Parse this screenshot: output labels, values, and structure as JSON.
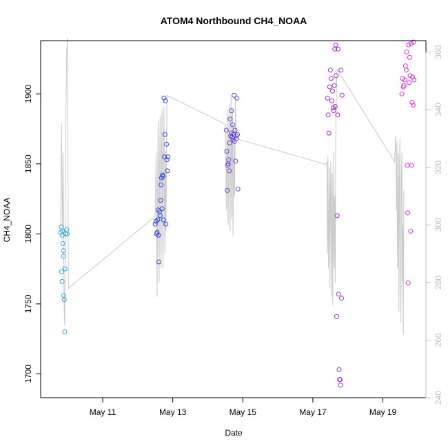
{
  "chart_data": {
    "type": "scatter",
    "title": "ATOM4 Northbound CH4_NOAA",
    "xlabel": "Date",
    "ylabel": "CH4_NOAA",
    "x_axis": {
      "unit": "day",
      "range": [
        "2018-05-09T05:30",
        "2018-05-20T05:30"
      ],
      "ticks": [
        {
          "value": "2018-05-11",
          "label": "May 11"
        },
        {
          "value": "2018-05-13",
          "label": "May 13"
        },
        {
          "value": "2018-05-15",
          "label": "May 15"
        },
        {
          "value": "2018-05-17",
          "label": "May 17"
        },
        {
          "value": "2018-05-19",
          "label": "May 19"
        }
      ]
    },
    "y_left": {
      "range": [
        1683,
        1938
      ],
      "ticks": [
        1700,
        1750,
        1800,
        1850,
        1900
      ]
    },
    "y_right": {
      "color": "#bebebe",
      "range": [
        240,
        364
      ],
      "ticks": [
        240,
        260,
        280,
        300,
        320,
        340,
        360
      ]
    },
    "marker": "open-circle",
    "groups": [
      {
        "color": "#29a8e0",
        "points": [
          [
            "2018-05-09T19:12",
            1801
          ],
          [
            "2018-05-09T19:40",
            1805
          ],
          [
            "2018-05-09T19:50",
            1773
          ],
          [
            "2018-05-09T20:10",
            1766
          ],
          [
            "2018-05-09T20:20",
            1799
          ],
          [
            "2018-05-09T20:30",
            1802
          ],
          [
            "2018-05-09T20:40",
            1793
          ],
          [
            "2018-05-09T21:00",
            1788
          ],
          [
            "2018-05-09T21:10",
            1784
          ],
          [
            "2018-05-09T21:20",
            1756
          ],
          [
            "2018-05-09T21:40",
            1753
          ],
          [
            "2018-05-09T22:00",
            1730
          ],
          [
            "2018-05-09T22:10",
            1775
          ],
          [
            "2018-05-09T22:30",
            1800
          ],
          [
            "2018-05-09T23:20",
            1803
          ],
          [
            "2018-05-09T23:40",
            1800
          ]
        ]
      },
      {
        "color": "#2b46d8",
        "points": [
          [
            "2018-05-12T12:00",
            1807
          ],
          [
            "2018-05-12T12:30",
            1809
          ],
          [
            "2018-05-12T13:00",
            1800
          ],
          [
            "2018-05-12T13:20",
            1801
          ],
          [
            "2018-05-12T13:40",
            1810
          ],
          [
            "2018-05-12T14:00",
            1817
          ],
          [
            "2018-05-12T14:10",
            1799
          ],
          [
            "2018-05-12T14:30",
            1780
          ],
          [
            "2018-05-12T15:00",
            1816
          ],
          [
            "2018-05-12T15:20",
            1813
          ],
          [
            "2018-05-12T15:40",
            1824
          ],
          [
            "2018-05-12T16:00",
            1835
          ],
          [
            "2018-05-12T16:20",
            1840
          ],
          [
            "2018-05-12T16:40",
            1818
          ],
          [
            "2018-05-12T17:00",
            1842
          ],
          [
            "2018-05-12T17:20",
            1841
          ],
          [
            "2018-05-12T17:40",
            1810
          ],
          [
            "2018-05-12T18:00",
            1897
          ],
          [
            "2018-05-12T18:20",
            1855
          ],
          [
            "2018-05-12T18:40",
            1871
          ],
          [
            "2018-05-12T19:00",
            1895
          ],
          [
            "2018-05-12T19:20",
            1807
          ],
          [
            "2018-05-12T19:40",
            1864
          ],
          [
            "2018-05-12T20:00",
            1853
          ],
          [
            "2018-05-12T20:20",
            1845
          ],
          [
            "2018-05-12T20:40",
            1855
          ]
        ]
      },
      {
        "color": "#6a3fd8",
        "points": [
          [
            "2018-05-14T12:40",
            1874
          ],
          [
            "2018-05-14T13:00",
            1859
          ],
          [
            "2018-05-14T13:20",
            1831
          ],
          [
            "2018-05-14T13:40",
            1849
          ],
          [
            "2018-05-14T14:00",
            1850
          ],
          [
            "2018-05-14T14:20",
            1853
          ],
          [
            "2018-05-14T14:40",
            1845
          ],
          [
            "2018-05-14T15:00",
            1865
          ],
          [
            "2018-05-14T15:20",
            1882
          ],
          [
            "2018-05-14T15:40",
            1870
          ],
          [
            "2018-05-14T16:00",
            1872
          ],
          [
            "2018-05-14T16:20",
            1888
          ],
          [
            "2018-05-14T16:40",
            1869
          ],
          [
            "2018-05-14T17:00",
            1878
          ],
          [
            "2018-05-14T17:20",
            1867
          ],
          [
            "2018-05-14T17:40",
            1871
          ],
          [
            "2018-05-14T18:00",
            1899
          ],
          [
            "2018-05-14T18:20",
            1866
          ],
          [
            "2018-05-14T18:40",
            1874
          ],
          [
            "2018-05-14T19:00",
            1852
          ],
          [
            "2018-05-14T19:20",
            1870
          ],
          [
            "2018-05-14T19:40",
            1868
          ],
          [
            "2018-05-14T20:00",
            1897
          ],
          [
            "2018-05-14T20:20",
            1871
          ],
          [
            "2018-05-14T20:40",
            1832
          ]
        ]
      },
      {
        "color": "#a12bd0",
        "points": [
          [
            "2018-05-17T10:00",
            1897
          ],
          [
            "2018-05-17T10:30",
            1885
          ],
          [
            "2018-05-17T11:00",
            1872
          ],
          [
            "2018-05-17T11:30",
            1905
          ],
          [
            "2018-05-17T12:00",
            1917
          ],
          [
            "2018-05-17T12:30",
            1911
          ],
          [
            "2018-05-17T13:00",
            1895
          ],
          [
            "2018-05-17T13:30",
            1902
          ],
          [
            "2018-05-17T14:00",
            1890
          ],
          [
            "2018-05-17T14:20",
            1888
          ],
          [
            "2018-05-17T14:40",
            1906
          ],
          [
            "2018-05-17T15:00",
            1932
          ],
          [
            "2018-05-17T15:20",
            1891
          ],
          [
            "2018-05-17T15:40",
            1935
          ],
          [
            "2018-05-17T16:00",
            1913
          ],
          [
            "2018-05-17T16:20",
            1741
          ],
          [
            "2018-05-17T16:40",
            1813
          ],
          [
            "2018-05-17T17:00",
            1885
          ],
          [
            "2018-05-17T17:20",
            1932
          ],
          [
            "2018-05-17T17:40",
            1757
          ],
          [
            "2018-05-17T18:00",
            1703
          ],
          [
            "2018-05-17T18:20",
            1696
          ],
          [
            "2018-05-17T18:40",
            1696
          ],
          [
            "2018-05-17T19:00",
            1692
          ],
          [
            "2018-05-17T19:20",
            1917
          ],
          [
            "2018-05-17T19:40",
            1754
          ],
          [
            "2018-05-17T20:00",
            1899
          ]
        ]
      },
      {
        "color": "#e02ed8",
        "points": [
          [
            "2018-05-19T13:00",
            1900
          ],
          [
            "2018-05-19T13:30",
            1911
          ],
          [
            "2018-05-19T14:00",
            1905
          ],
          [
            "2018-05-19T14:30",
            1906
          ],
          [
            "2018-05-19T15:00",
            1910
          ],
          [
            "2018-05-19T15:30",
            1920
          ],
          [
            "2018-05-19T16:00",
            1917
          ],
          [
            "2018-05-19T16:20",
            1930
          ],
          [
            "2018-05-19T16:40",
            1849
          ],
          [
            "2018-05-19T17:00",
            1815
          ],
          [
            "2018-05-19T17:20",
            1765
          ],
          [
            "2018-05-19T17:40",
            1935
          ],
          [
            "2018-05-19T18:00",
            1908
          ],
          [
            "2018-05-19T18:20",
            1926
          ],
          [
            "2018-05-19T18:40",
            1913
          ],
          [
            "2018-05-19T19:00",
            1802
          ],
          [
            "2018-05-19T19:20",
            1936
          ],
          [
            "2018-05-19T19:40",
            1849
          ],
          [
            "2018-05-19T20:00",
            1894
          ],
          [
            "2018-05-19T20:20",
            1912
          ],
          [
            "2018-05-19T20:40",
            1892
          ],
          [
            "2018-05-19T21:00",
            1937
          ],
          [
            "2018-05-19T21:20",
            1910
          ]
        ]
      }
    ],
    "secondary_line": {
      "color": "#c8c8c8",
      "axis": "y_right",
      "points": [
        [
          "2018-05-09T19:12",
          300
        ],
        [
          "2018-05-09T19:50",
          335
        ],
        [
          "2018-05-09T20:10",
          310
        ],
        [
          "2018-05-09T20:30",
          298
        ],
        [
          "2018-05-09T20:50",
          325
        ],
        [
          "2018-05-09T21:20",
          285
        ],
        [
          "2018-05-09T21:40",
          270
        ],
        [
          "2018-05-09T22:00",
          265
        ],
        [
          "2018-05-09T22:20",
          300
        ],
        [
          "2018-05-09T22:50",
          340
        ],
        [
          "2018-05-09T23:20",
          360
        ],
        [
          "2018-05-09T23:55",
          365
        ],
        [
          "2018-05-10T00:30",
          278
        ],
        [
          "2018-05-12T12:00",
          303
        ],
        [
          "2018-05-12T12:40",
          325
        ],
        [
          "2018-05-12T13:00",
          293
        ],
        [
          "2018-05-12T13:20",
          275
        ],
        [
          "2018-05-12T13:40",
          315
        ],
        [
          "2018-05-12T14:00",
          336
        ],
        [
          "2018-05-12T14:20",
          300
        ],
        [
          "2018-05-12T14:40",
          280
        ],
        [
          "2018-05-12T15:00",
          320
        ],
        [
          "2018-05-12T15:20",
          338
        ],
        [
          "2018-05-12T15:40",
          299
        ],
        [
          "2018-05-12T16:00",
          285
        ],
        [
          "2018-05-12T16:20",
          325
        ],
        [
          "2018-05-12T16:40",
          340
        ],
        [
          "2018-05-12T17:00",
          300
        ],
        [
          "2018-05-12T17:20",
          285
        ],
        [
          "2018-05-12T17:40",
          320
        ],
        [
          "2018-05-12T18:00",
          341
        ],
        [
          "2018-05-12T18:20",
          305
        ],
        [
          "2018-05-12T18:40",
          290
        ],
        [
          "2018-05-12T19:00",
          326
        ],
        [
          "2018-05-12T19:20",
          298
        ],
        [
          "2018-05-12T19:40",
          320
        ],
        [
          "2018-05-12T20:00",
          345
        ],
        [
          "2018-05-14T12:00",
          335
        ],
        [
          "2018-05-14T12:20",
          330
        ],
        [
          "2018-05-14T12:40",
          305
        ],
        [
          "2018-05-14T13:00",
          322
        ],
        [
          "2018-05-14T13:20",
          340
        ],
        [
          "2018-05-14T13:40",
          310
        ],
        [
          "2018-05-14T14:00",
          300
        ],
        [
          "2018-05-14T14:20",
          328
        ],
        [
          "2018-05-14T14:40",
          342
        ],
        [
          "2018-05-14T15:00",
          315
        ],
        [
          "2018-05-14T15:20",
          298
        ],
        [
          "2018-05-14T15:40",
          325
        ],
        [
          "2018-05-14T16:00",
          345
        ],
        [
          "2018-05-14T16:20",
          302
        ],
        [
          "2018-05-14T16:40",
          320
        ],
        [
          "2018-05-14T17:00",
          340
        ],
        [
          "2018-05-14T17:20",
          296
        ],
        [
          "2018-05-14T17:40",
          315
        ],
        [
          "2018-05-14T18:00",
          335
        ],
        [
          "2018-05-14T18:20",
          310
        ],
        [
          "2018-05-14T18:40",
          324
        ],
        [
          "2018-05-14T19:00",
          345
        ],
        [
          "2018-05-14T19:20",
          330
        ],
        [
          "2018-05-17T09:00",
          321
        ],
        [
          "2018-05-17T09:40",
          322
        ],
        [
          "2018-05-17T10:00",
          290
        ],
        [
          "2018-05-17T10:20",
          324
        ],
        [
          "2018-05-17T10:40",
          285
        ],
        [
          "2018-05-17T11:00",
          300
        ],
        [
          "2018-05-17T11:20",
          320
        ],
        [
          "2018-05-17T11:40",
          278
        ],
        [
          "2018-05-17T12:00",
          310
        ],
        [
          "2018-05-17T12:20",
          322
        ],
        [
          "2018-05-17T12:40",
          275
        ],
        [
          "2018-05-17T13:00",
          305
        ],
        [
          "2018-05-17T13:20",
          318
        ],
        [
          "2018-05-17T13:40",
          272
        ],
        [
          "2018-05-17T14:00",
          300
        ],
        [
          "2018-05-17T14:20",
          325
        ],
        [
          "2018-05-17T14:40",
          285
        ],
        [
          "2018-05-17T15:00",
          310
        ],
        [
          "2018-05-17T15:20",
          280
        ],
        [
          "2018-05-17T15:40",
          330
        ],
        [
          "2018-05-17T16:00",
          340
        ],
        [
          "2018-05-17T16:20",
          350
        ],
        [
          "2018-05-17T16:40",
          354
        ],
        [
          "2018-05-19T08:00",
          322
        ],
        [
          "2018-05-19T08:40",
          331
        ],
        [
          "2018-05-19T09:00",
          325
        ],
        [
          "2018-05-19T09:20",
          305
        ],
        [
          "2018-05-19T09:40",
          329
        ],
        [
          "2018-05-19T10:00",
          285
        ],
        [
          "2018-05-19T10:20",
          300
        ],
        [
          "2018-05-19T10:40",
          325
        ],
        [
          "2018-05-19T11:00",
          270
        ],
        [
          "2018-05-19T11:20",
          315
        ],
        [
          "2018-05-19T11:40",
          330
        ],
        [
          "2018-05-19T12:00",
          290
        ],
        [
          "2018-05-19T12:20",
          266
        ],
        [
          "2018-05-19T12:40",
          318
        ],
        [
          "2018-05-19T13:00",
          325
        ],
        [
          "2018-05-19T13:20",
          280
        ],
        [
          "2018-05-19T13:40",
          300
        ],
        [
          "2018-05-19T14:00",
          262
        ],
        [
          "2018-05-19T14:20",
          312
        ]
      ]
    },
    "grid": false,
    "legend": "none"
  }
}
